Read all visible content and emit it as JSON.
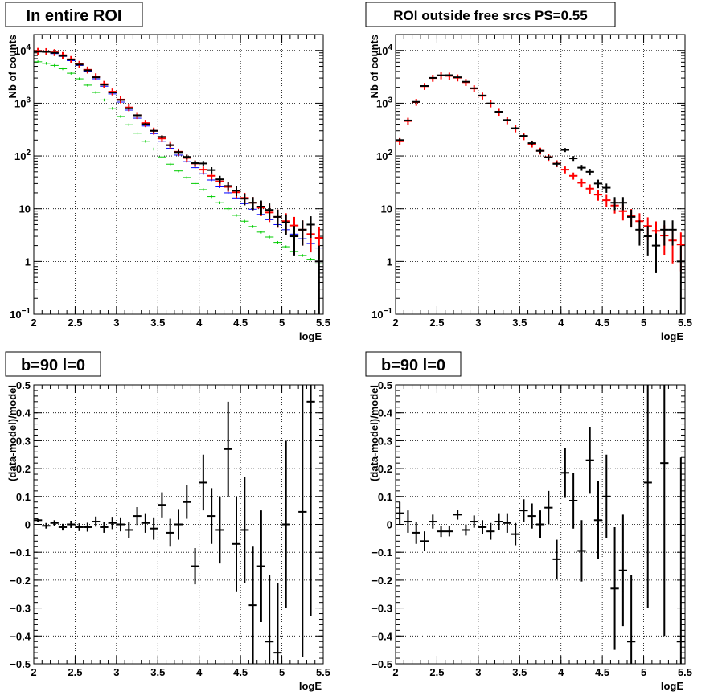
{
  "colors": {
    "data": "#000000",
    "model_total": "#ff0000",
    "model_blue": "#0000ff",
    "model_green": "#00cc00",
    "grid": "#000000"
  },
  "chart_data": [
    {
      "id": "p1",
      "type": "line",
      "title": "In entire ROI",
      "xlabel": "logE",
      "ylabel": "Nb of counts",
      "xlim": [
        2,
        5.5
      ],
      "ylim": [
        0.1,
        20000
      ],
      "yscale": "log",
      "grid": true,
      "x_ticks": [
        2,
        2.5,
        3,
        3.5,
        4,
        4.5,
        5,
        5.5
      ],
      "x_tick_labels": [
        "2",
        "2.5",
        "3",
        "3.5",
        "4",
        "4.5",
        "5",
        "5.5"
      ],
      "y_ticks": [
        0.1,
        1,
        10,
        100,
        1000,
        10000
      ],
      "y_tick_labels": [
        "10^-1",
        "1",
        "10",
        "10^2",
        "10^3",
        "10^4"
      ],
      "bin_width": 0.1,
      "x": [
        2.05,
        2.15,
        2.25,
        2.35,
        2.45,
        2.55,
        2.65,
        2.75,
        2.85,
        2.95,
        3.05,
        3.15,
        3.25,
        3.35,
        3.45,
        3.55,
        3.65,
        3.75,
        3.85,
        3.95,
        4.05,
        4.15,
        4.25,
        4.35,
        4.45,
        4.55,
        4.65,
        4.75,
        4.85,
        4.95,
        5.05,
        5.15,
        5.25,
        5.35,
        5.45
      ],
      "series": [
        {
          "name": "",
          "role": "green",
          "values": [
            6100,
            5700,
            5200,
            4500,
            3700,
            2900,
            2200,
            1600,
            1150,
            800,
            560,
            390,
            270,
            190,
            135,
            96,
            70,
            52,
            39,
            30,
            23,
            17,
            13,
            10,
            7.5,
            5.8,
            4.6,
            3.6,
            2.9,
            2.3,
            1.9,
            1.55,
            1.3,
            1.1,
            0.9
          ]
        },
        {
          "name": "",
          "role": "blue",
          "values": [
            9600,
            9300,
            8700,
            7700,
            6400,
            5200,
            4000,
            2900,
            2100,
            1500,
            1050,
            740,
            520,
            370,
            265,
            190,
            140,
            104,
            78,
            60,
            46,
            35,
            26,
            20,
            16,
            12.5,
            9.8,
            7.8,
            6.2,
            5,
            4,
            3.3,
            2.7,
            2.2,
            1.8
          ]
        },
        {
          "name": "",
          "role": "red",
          "values": [
            9700,
            9600,
            9200,
            8100,
            6800,
            5500,
            4300,
            3200,
            2300,
            1650,
            1170,
            830,
            590,
            420,
            300,
            215,
            160,
            120,
            92,
            72,
            55,
            42,
            33,
            26,
            20.5,
            16,
            13,
            10.5,
            8.5,
            7,
            5.8,
            4.8,
            4,
            3.3,
            2.8
          ]
        },
        {
          "name": "",
          "role": "data",
          "values": [
            9500,
            9400,
            9000,
            7900,
            6700,
            5400,
            4200,
            3100,
            2250,
            1600,
            1150,
            800,
            590,
            400,
            300,
            230,
            160,
            118,
            96,
            73,
            72,
            54,
            36,
            27,
            22,
            15.5,
            13,
            11,
            9.5,
            7,
            5.5,
            3,
            4,
            5,
            1
          ],
          "err_lo": [
            98,
            97,
            95,
            89,
            82,
            74,
            65,
            56,
            47,
            40,
            34,
            28,
            24,
            20,
            17,
            15,
            13,
            11,
            10,
            8.5,
            8.5,
            7.3,
            6,
            5.2,
            4.7,
            3.9,
            3.6,
            3.3,
            3.1,
            2.6,
            2.3,
            1.7,
            2,
            2.2,
            1
          ],
          "err_hi": [
            98,
            97,
            95,
            89,
            82,
            74,
            65,
            56,
            47,
            40,
            34,
            28,
            24,
            20,
            17,
            15,
            13,
            11,
            10,
            8.5,
            8.5,
            7.3,
            6,
            5.2,
            4.7,
            3.9,
            3.6,
            3.3,
            3.1,
            2.6,
            2.3,
            1.7,
            2,
            2.2,
            1
          ]
        }
      ]
    },
    {
      "id": "p2",
      "type": "line",
      "title": "ROI outside free srcs PS=0.55",
      "xlabel": "logE",
      "ylabel": "Nb of counts",
      "xlim": [
        2,
        5.5
      ],
      "ylim": [
        0.1,
        20000
      ],
      "yscale": "log",
      "grid": true,
      "x_ticks": [
        2,
        2.5,
        3,
        3.5,
        4,
        4.5,
        5,
        5.5
      ],
      "x_tick_labels": [
        "2",
        "2.5",
        "3",
        "3.5",
        "4",
        "4.5",
        "5",
        "5.5"
      ],
      "y_ticks": [
        0.1,
        1,
        10,
        100,
        1000,
        10000
      ],
      "y_tick_labels": [
        "10^-1",
        "1",
        "10",
        "10^2",
        "10^3",
        "10^4"
      ],
      "bin_width": 0.1,
      "x": [
        2.05,
        2.15,
        2.25,
        2.35,
        2.45,
        2.55,
        2.65,
        2.75,
        2.85,
        2.95,
        3.05,
        3.15,
        3.25,
        3.35,
        3.45,
        3.55,
        3.65,
        3.75,
        3.85,
        3.95,
        4.05,
        4.15,
        4.25,
        4.35,
        4.45,
        4.55,
        4.65,
        4.75,
        4.85,
        4.95,
        5.05,
        5.15,
        5.25,
        5.35,
        5.45
      ],
      "series": [
        {
          "name": "",
          "role": "red",
          "values": [
            190,
            460,
            1050,
            2100,
            3000,
            3350,
            3300,
            3050,
            2500,
            1900,
            1380,
            980,
            680,
            470,
            330,
            235,
            170,
            125,
            95,
            72,
            55,
            42,
            31,
            24,
            18.5,
            14.5,
            11.5,
            9,
            7.2,
            5.8,
            4.7,
            3.8,
            3.1,
            2.5,
            2.1
          ]
        },
        {
          "name": "",
          "role": "data",
          "values": [
            200,
            470,
            1060,
            2120,
            3020,
            3380,
            3400,
            3100,
            2550,
            1920,
            1400,
            990,
            690,
            480,
            335,
            240,
            175,
            125,
            94,
            71,
            130,
            90,
            60,
            50,
            30,
            25,
            13,
            13,
            7,
            4,
            3,
            2,
            4,
            4,
            1
          ],
          "err_lo": [
            14,
            21,
            32,
            46,
            55,
            58,
            58,
            56,
            50,
            44,
            37,
            31,
            26,
            22,
            18,
            15,
            13,
            11,
            9.7,
            8.4,
            11.4,
            9.5,
            7.7,
            7,
            5.5,
            5,
            3.6,
            3.6,
            2.6,
            2,
            1.7,
            1.4,
            2,
            2,
            1
          ],
          "err_hi": [
            14,
            21,
            32,
            46,
            55,
            58,
            58,
            56,
            50,
            44,
            37,
            31,
            26,
            22,
            18,
            15,
            13,
            11,
            9.7,
            8.4,
            11.4,
            9.5,
            7.7,
            7,
            5.5,
            5,
            3.6,
            3.6,
            2.6,
            2,
            1.7,
            1.4,
            2,
            2,
            1
          ]
        }
      ]
    },
    {
      "id": "p3",
      "type": "scatter",
      "title": "b=90 l=0",
      "xlabel": "logE",
      "ylabel": "(data-model)/model",
      "xlim": [
        2,
        5.5
      ],
      "ylim": [
        -0.5,
        0.5
      ],
      "yscale": "linear",
      "grid": true,
      "x_ticks": [
        2,
        2.5,
        3,
        3.5,
        4,
        4.5,
        5,
        5.5
      ],
      "x_tick_labels": [
        "2",
        "2.5",
        "3",
        "3.5",
        "4",
        "4.5",
        "5",
        "5.5"
      ],
      "y_ticks": [
        -0.5,
        -0.4,
        -0.3,
        -0.2,
        -0.1,
        0,
        0.1,
        0.2,
        0.3,
        0.4,
        0.5
      ],
      "y_tick_labels": [
        "−0.5",
        "−0.4",
        "−0.3",
        "−0.2",
        "−0.1",
        "0",
        "0.1",
        "0.2",
        "0.3",
        "0.4",
        "0.5"
      ],
      "bin_width": 0.1,
      "x": [
        2.05,
        2.15,
        2.25,
        2.35,
        2.45,
        2.55,
        2.65,
        2.75,
        2.85,
        2.95,
        3.05,
        3.15,
        3.25,
        3.35,
        3.45,
        3.55,
        3.65,
        3.75,
        3.85,
        3.95,
        4.05,
        4.15,
        4.25,
        4.35,
        4.45,
        4.55,
        4.65,
        4.75,
        4.85,
        4.95,
        5.05,
        5.15,
        5.25,
        5.35,
        5.45
      ],
      "series": [
        {
          "name": "",
          "role": "data",
          "values": [
            0.015,
            -0.005,
            0.005,
            -0.01,
            0,
            -0.01,
            -0.01,
            0.01,
            -0.01,
            0.005,
            0.0,
            -0.02,
            0.03,
            0.005,
            -0.015,
            0.07,
            -0.03,
            0.0,
            0.08,
            -0.15,
            0.15,
            0.03,
            -0.02,
            0.27,
            -0.07,
            -0.02,
            -0.29,
            -0.15,
            -0.42,
            -0.46,
            0.0,
            null,
            0.045,
            0.44,
            null
          ],
          "err": [
            0.005,
            0.01,
            0.01,
            0.012,
            0.013,
            0.014,
            0.016,
            0.018,
            0.02,
            0.022,
            0.025,
            0.03,
            0.032,
            0.035,
            0.04,
            0.045,
            0.05,
            0.055,
            0.06,
            0.065,
            0.1,
            0.1,
            0.12,
            0.17,
            0.17,
            0.19,
            0.21,
            0.2,
            0.24,
            0.25,
            0.3,
            null,
            0.52,
            0.77,
            null
          ]
        }
      ]
    },
    {
      "id": "p4",
      "type": "scatter",
      "title": "b=90 l=0",
      "xlabel": "logE",
      "ylabel": "(data-model)/model",
      "xlim": [
        2,
        5.5
      ],
      "ylim": [
        -0.5,
        0.5
      ],
      "yscale": "linear",
      "grid": true,
      "x_ticks": [
        2,
        2.5,
        3,
        3.5,
        4,
        4.5,
        5,
        5.5
      ],
      "x_tick_labels": [
        "2",
        "2.5",
        "3",
        "3.5",
        "4",
        "4.5",
        "5",
        "5.5"
      ],
      "y_ticks": [
        -0.5,
        -0.4,
        -0.3,
        -0.2,
        -0.1,
        0,
        0.1,
        0.2,
        0.3,
        0.4,
        0.5
      ],
      "y_tick_labels": [
        "−0.5",
        "−0.4",
        "−0.3",
        "−0.2",
        "−0.1",
        "0",
        "0.1",
        "0.2",
        "0.3",
        "0.4",
        "0.5"
      ],
      "bin_width": 0.1,
      "x": [
        2.05,
        2.15,
        2.25,
        2.35,
        2.45,
        2.55,
        2.65,
        2.75,
        2.85,
        2.95,
        3.05,
        3.15,
        3.25,
        3.35,
        3.45,
        3.55,
        3.65,
        3.75,
        3.85,
        3.95,
        4.05,
        4.15,
        4.25,
        4.35,
        4.45,
        4.55,
        4.65,
        4.75,
        4.85,
        4.95,
        5.05,
        5.15,
        5.25,
        5.35,
        5.45
      ],
      "series": [
        {
          "name": "",
          "role": "data",
          "values": [
            0.04,
            0.01,
            -0.03,
            -0.06,
            0.01,
            -0.025,
            -0.025,
            0.035,
            -0.02,
            0.01,
            -0.01,
            -0.025,
            0.01,
            0.005,
            -0.035,
            0.05,
            0.03,
            0.0,
            0.06,
            -0.125,
            0.185,
            0.085,
            -0.095,
            0.23,
            0.015,
            0.1,
            -0.23,
            -0.165,
            -0.42,
            null,
            0.15,
            null,
            0.22,
            null,
            -0.42
          ],
          "err": [
            0.04,
            0.04,
            0.04,
            0.035,
            0.025,
            0.02,
            0.018,
            0.018,
            0.02,
            0.022,
            0.025,
            0.03,
            0.03,
            0.035,
            0.04,
            0.04,
            0.045,
            0.05,
            0.06,
            0.07,
            0.09,
            0.1,
            0.11,
            0.12,
            0.14,
            0.15,
            0.22,
            0.2,
            0.24,
            null,
            0.45,
            null,
            0.62,
            null,
            0.66
          ]
        }
      ]
    }
  ]
}
